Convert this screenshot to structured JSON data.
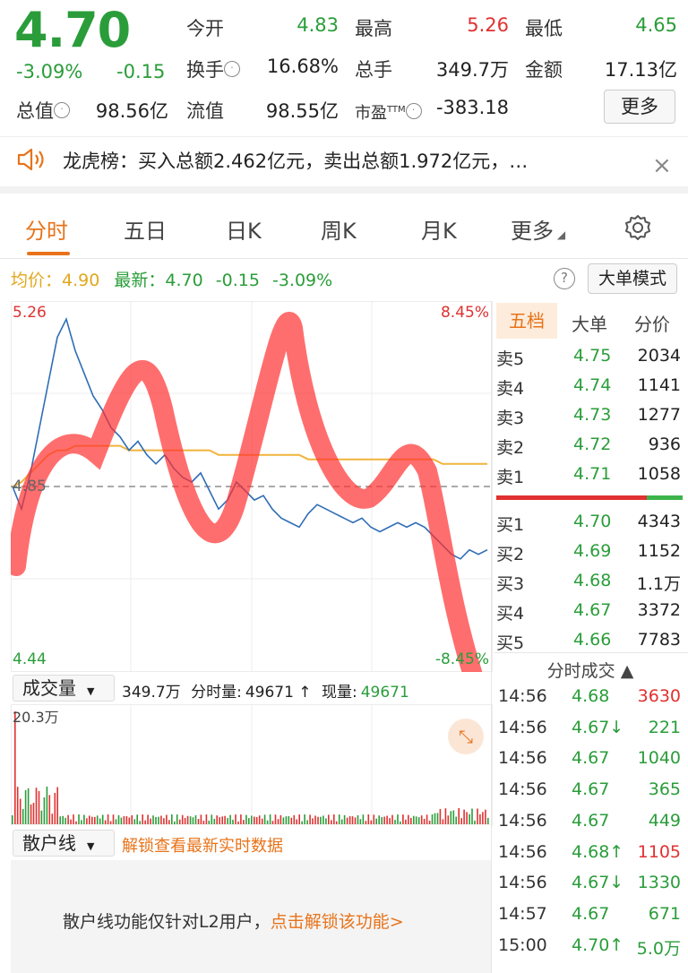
{
  "quote": {
    "price": "4.70",
    "pct": "-3.09%",
    "change": "-0.15",
    "fields": [
      {
        "label": "今开",
        "value": "4.83",
        "color": "green"
      },
      {
        "label": "最高",
        "value": "5.26",
        "color": "red"
      },
      {
        "label": "最低",
        "value": "4.65",
        "color": "green"
      },
      {
        "label": "换手",
        "value": "16.68%",
        "color": "black"
      },
      {
        "label": "总手",
        "value": "349.7万",
        "color": "black"
      },
      {
        "label": "金额",
        "value": "17.13亿",
        "color": "black"
      },
      {
        "label": "总值",
        "value": "98.56亿",
        "color": "black"
      },
      {
        "label": "流值",
        "value": "98.55亿",
        "color": "black"
      },
      {
        "label": "市盈",
        "value": "-383.18",
        "color": "black"
      }
    ],
    "ttm": "TTM",
    "more_label": "更多"
  },
  "notice": {
    "text": "龙虎榜：买入总额2.462亿元，卖出总额1.972亿元，…",
    "close": "×"
  },
  "tabs": [
    "分时",
    "五日",
    "日K",
    "周K",
    "月K",
    "更多"
  ],
  "info_row": {
    "avg_label": "均价：",
    "avg_value": "4.90",
    "latest_label": "最新：",
    "latest_value": "4.70",
    "change": "-0.15",
    "pct": "-3.09%"
  },
  "big_order_label": "大单模式",
  "help_icon_glyph": "?",
  "chart_data": {
    "type": "line",
    "y_top_label": "5.26",
    "y_bottom_label": "4.44",
    "y_mid_label": "4.85",
    "pct_top_label": "8.45%",
    "pct_bottom_label": "-8.45%",
    "ylim": [
      4.44,
      5.26
    ],
    "prev_close": 4.85,
    "price": [
      4.85,
      4.8,
      4.88,
      4.98,
      5.08,
      5.18,
      5.22,
      5.15,
      5.1,
      5.05,
      5.02,
      4.98,
      4.96,
      4.93,
      4.95,
      4.92,
      4.9,
      4.92,
      4.89,
      4.87,
      4.86,
      4.88,
      4.84,
      4.8,
      4.82,
      4.86,
      4.84,
      4.82,
      4.83,
      4.8,
      4.78,
      4.77,
      4.76,
      4.79,
      4.81,
      4.8,
      4.79,
      4.78,
      4.77,
      4.78,
      4.76,
      4.75,
      4.76,
      4.77,
      4.76,
      4.77,
      4.76,
      4.74,
      4.72,
      4.7,
      4.69,
      4.71,
      4.7,
      4.71
    ],
    "avg": [
      4.85,
      4.86,
      4.88,
      4.9,
      4.92,
      4.93,
      4.93,
      4.94,
      4.94,
      4.94,
      4.94,
      4.94,
      4.94,
      4.93,
      4.93,
      4.93,
      4.93,
      4.93,
      4.93,
      4.93,
      4.93,
      4.93,
      4.93,
      4.92,
      4.92,
      4.92,
      4.92,
      4.92,
      4.92,
      4.92,
      4.92,
      4.92,
      4.92,
      4.91,
      4.91,
      4.91,
      4.91,
      4.91,
      4.91,
      4.91,
      4.91,
      4.91,
      4.91,
      4.91,
      4.91,
      4.91,
      4.91,
      4.91,
      4.9,
      4.9,
      4.9,
      4.9,
      4.9,
      4.9
    ],
    "volume_max_label": "20.3万"
  },
  "order_book": {
    "tabs": [
      "五档",
      "大单",
      "分价"
    ],
    "asks": [
      {
        "label": "卖5",
        "price": "4.75",
        "vol": "2034"
      },
      {
        "label": "卖4",
        "price": "4.74",
        "vol": "1141"
      },
      {
        "label": "卖3",
        "price": "4.73",
        "vol": "1277"
      },
      {
        "label": "卖2",
        "price": "4.72",
        "vol": "936"
      },
      {
        "label": "卖1",
        "price": "4.71",
        "vol": "1058"
      }
    ],
    "bids": [
      {
        "label": "买1",
        "price": "4.70",
        "vol": "4343"
      },
      {
        "label": "买2",
        "price": "4.69",
        "vol": "1152"
      },
      {
        "label": "买3",
        "price": "4.68",
        "vol": "1.1万"
      },
      {
        "label": "买4",
        "price": "4.67",
        "vol": "3372"
      },
      {
        "label": "买5",
        "price": "4.66",
        "vol": "7783"
      }
    ]
  },
  "trades": {
    "title": "分时成交 ▲",
    "rows": [
      {
        "time": "14:56",
        "price": "4.68",
        "vol": "3630",
        "color": "red"
      },
      {
        "time": "14:56",
        "price": "4.67↓",
        "vol": "221",
        "color": "green"
      },
      {
        "time": "14:56",
        "price": "4.67",
        "vol": "1040",
        "color": "green"
      },
      {
        "time": "14:56",
        "price": "4.67",
        "vol": "365",
        "color": "green"
      },
      {
        "time": "14:56",
        "price": "4.67",
        "vol": "449",
        "color": "green"
      },
      {
        "time": "14:56",
        "price": "4.68↑",
        "vol": "1105",
        "color": "red"
      },
      {
        "time": "14:56",
        "price": "4.67↓",
        "vol": "1330",
        "color": "green"
      },
      {
        "time": "14:57",
        "price": "4.67",
        "vol": "671",
        "color": "green"
      },
      {
        "time": "15:00",
        "price": "4.70↑",
        "vol": "5.0万",
        "color": "green"
      }
    ]
  },
  "volume_row": {
    "select": "成交量",
    "total": "349.7万",
    "min_label": "分时量:",
    "min_value": "49671 ↑",
    "now_label": "现量:",
    "now_value": "49671"
  },
  "retail": {
    "select": "散户线",
    "unlock": "解锁查看最新实时数据",
    "msg": "散户线功能仅针对L2用户，",
    "msg_link": "点击解锁该功能>"
  }
}
